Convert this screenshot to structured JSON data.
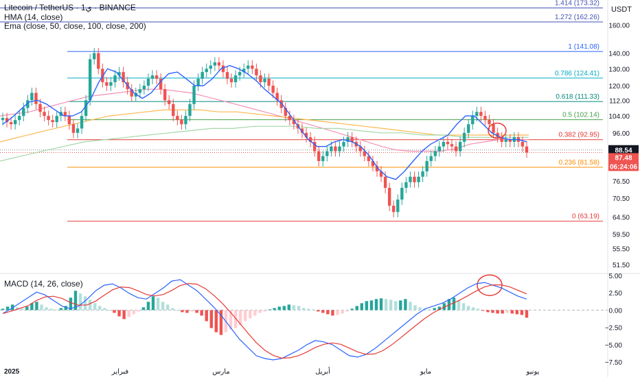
{
  "header": {
    "symbol_line": "Litecoin / TetherUS · 1ي · BINANCE",
    "hma_line": "HMA (14, close)",
    "ema_line": "Ema (close, 50, close, 100, close, 200)",
    "currency": "USDT"
  },
  "macd_header": "MACD (14, 26, close)",
  "colors": {
    "up": "#26a69a",
    "down": "#ef5350",
    "hma": "#2962ff",
    "ema50": "#f48fb1",
    "ema100": "#ffb74d",
    "ema200": "#a5d6a7",
    "macd_line": "#2962ff",
    "signal_line": "#e53935"
  },
  "chart_data": [
    {
      "type": "candlestick",
      "title": "Litecoin / TetherUS · 1ي · BINANCE",
      "y_scale": "log",
      "ylim": [
        49.5,
        180
      ],
      "y_ticks": [
        "160.00",
        "140.00",
        "130.00",
        "120.00",
        "112.00",
        "104.00",
        "96.00",
        "88.54",
        "82.50",
        "76.50",
        "70.50",
        "64.50",
        "59.50",
        "55.50",
        "51.50"
      ],
      "x_ticks": [
        "2025",
        "فبراير",
        "مارس",
        "أبريل",
        "مايو",
        "يونيو"
      ],
      "series": [
        {
          "name": "Litecoin / TetherUS",
          "values": [
            103,
            101,
            100,
            102,
            104,
            108,
            112,
            116,
            110,
            106,
            104,
            102,
            101,
            104,
            106,
            104,
            100,
            96,
            98,
            104,
            112,
            136,
            140,
            130,
            122,
            120,
            122,
            126,
            128,
            122,
            118,
            114,
            116,
            118,
            120,
            124,
            126,
            124,
            118,
            112,
            110,
            104,
            102,
            100,
            104,
            110,
            120,
            124,
            128,
            130,
            132,
            134,
            132,
            128,
            124,
            122,
            126,
            128,
            130,
            132,
            130,
            126,
            122,
            124,
            120,
            116,
            112,
            108,
            104,
            102,
            100,
            98,
            96,
            94,
            92,
            88,
            84,
            86,
            88,
            90,
            88,
            90,
            92,
            94,
            92,
            90,
            88,
            86,
            84,
            82,
            80,
            78,
            74,
            68,
            66,
            70,
            74,
            76,
            78,
            76,
            78,
            80,
            84,
            86,
            88,
            90,
            92,
            91,
            90,
            88,
            92,
            96,
            100,
            104,
            106,
            104,
            102,
            100,
            96,
            94,
            92,
            93,
            92,
            94,
            92,
            90,
            87.48
          ]
        },
        {
          "name": "HMA (14, close)",
          "values": [
            100,
            103,
            107,
            111,
            112,
            110,
            107,
            104,
            104,
            106,
            112,
            122,
            130,
            128,
            122,
            116,
            113,
            116,
            122,
            127,
            128,
            124,
            120,
            120,
            124,
            130,
            132,
            130,
            127,
            123,
            118,
            114,
            110,
            104,
            98,
            93,
            90,
            90,
            92,
            93,
            92,
            90,
            86,
            81,
            78,
            77,
            80,
            84,
            88,
            91,
            93,
            95,
            100,
            104,
            104,
            100,
            96,
            94,
            93,
            93,
            92
          ]
        },
        {
          "name": "EMA 50",
          "values": [
            104,
            105,
            106,
            108,
            110,
            112,
            114,
            115,
            116,
            117,
            118,
            118,
            117,
            116,
            114,
            112,
            110,
            108,
            106,
            104,
            102,
            100,
            98,
            96,
            94,
            92,
            90,
            88.5,
            88,
            88,
            88,
            89,
            91,
            92,
            93,
            93,
            93
          ]
        },
        {
          "name": "EMA 100",
          "values": [
            92,
            94,
            96,
            98,
            100,
            102,
            104,
            105,
            106,
            107,
            107,
            107,
            106,
            106,
            105,
            104,
            103,
            102,
            101,
            100,
            99,
            98,
            97,
            96,
            95,
            95,
            95,
            95,
            95,
            95
          ]
        },
        {
          "name": "EMA 200",
          "values": [
            84,
            86,
            88,
            90,
            92,
            93,
            94,
            95,
            96,
            97,
            98,
            98,
            99,
            99,
            99,
            98,
            98,
            97,
            96,
            96,
            95,
            95,
            94,
            94,
            94,
            94
          ]
        }
      ],
      "fibonacci_levels": [
        {
          "label": "1.414 (173.32)",
          "price": 173.32,
          "color": "#3f51b5"
        },
        {
          "label": "1.272 (162.26)",
          "price": 162.26,
          "color": "#3f51b5"
        },
        {
          "label": "1 (141.08)",
          "price": 141.08,
          "color": "#2962ff"
        },
        {
          "label": "0.786 (124.41)",
          "price": 124.41,
          "color": "#00acc1"
        },
        {
          "label": "0.618 (111.33)",
          "price": 111.33,
          "color": "#00897b"
        },
        {
          "label": "0.5 (102.14)",
          "price": 102.14,
          "color": "#43a047"
        },
        {
          "label": "0.382 (92.95)",
          "price": 92.95,
          "color": "#e53935"
        },
        {
          "label": "0.236 (81.58)",
          "price": 81.58,
          "color": "#fb8c00"
        },
        {
          "label": "0 (63.19)",
          "price": 63.19,
          "color": "#e53935"
        }
      ],
      "price_badges": [
        {
          "text": "88.54",
          "bg": "#131722"
        },
        {
          "text": "87.48",
          "bg": "#ef5350"
        },
        {
          "text": "06:24:06",
          "bg": "#ef5350"
        }
      ]
    },
    {
      "type": "macd",
      "title": "MACD (14, 26, close)",
      "ylim": [
        -7.5,
        5.0
      ],
      "y_ticks": [
        "5.00",
        "2.50",
        "0.00",
        "−2.50",
        "−5.00",
        "−7.50"
      ],
      "histogram": [
        0.2,
        0.5,
        0.8,
        0.4,
        0.2,
        0.5,
        1.0,
        1.2,
        0.8,
        0.4,
        0.2,
        0.1,
        0.3,
        0.6,
        1.8,
        2.8,
        2.4,
        2.0,
        1.5,
        1.0,
        0.6,
        0.3,
        0.0,
        -0.4,
        -0.9,
        -1.3,
        -1.0,
        -0.6,
        -0.2,
        0.4,
        1.2,
        2.0,
        1.8,
        1.2,
        0.8,
        0.3,
        0.0,
        -0.3,
        -0.4,
        -0.2,
        -0.4,
        -0.8,
        -1.6,
        -2.6,
        -3.2,
        -3.6,
        -3.2,
        -2.8,
        -2.6,
        -2.2,
        -1.6,
        -1.2,
        -0.8,
        -0.4,
        -0.2,
        0.1,
        0.3,
        0.5,
        0.6,
        0.8,
        0.7,
        0.6,
        0.3,
        0.2,
        0.1,
        -0.2,
        -0.4,
        -0.6,
        -0.8,
        -0.7,
        -0.5,
        -0.2,
        0.2,
        0.6,
        1.0,
        1.3,
        1.4,
        1.6,
        1.7,
        1.6,
        1.5,
        1.3,
        1.4,
        1.6,
        1.2,
        0.7,
        0.4,
        0.2,
        0.1,
        0.3,
        0.5,
        1.0,
        1.6,
        1.8,
        1.4,
        1.0,
        0.6,
        0.4,
        0.2,
        -0.1,
        -0.3,
        -0.4,
        -0.5,
        -0.5,
        -0.4,
        -0.5,
        -0.6,
        -0.7,
        -1.1
      ],
      "macd_line": [
        -0.5,
        0.2,
        1.0,
        1.8,
        2.6,
        2.2,
        1.4,
        0.6,
        0.2,
        0.6,
        1.6,
        2.8,
        3.6,
        3.8,
        3.2,
        2.4,
        1.8,
        1.6,
        2.4,
        3.2,
        4.2,
        4.4,
        3.6,
        2.8,
        1.6,
        0.4,
        -1.0,
        -2.6,
        -4.2,
        -5.4,
        -6.6,
        -7.0,
        -7.2,
        -7.0,
        -6.4,
        -5.8,
        -5.0,
        -4.4,
        -4.6,
        -5.0,
        -5.8,
        -6.6,
        -6.8,
        -6.4,
        -5.6,
        -4.6,
        -3.6,
        -2.6,
        -1.6,
        -0.6,
        0.2,
        0.6,
        1.0,
        1.6,
        2.4,
        3.2,
        3.8,
        4.0,
        3.6,
        3.2,
        2.6,
        2.0,
        1.6
      ]
    }
  ]
}
